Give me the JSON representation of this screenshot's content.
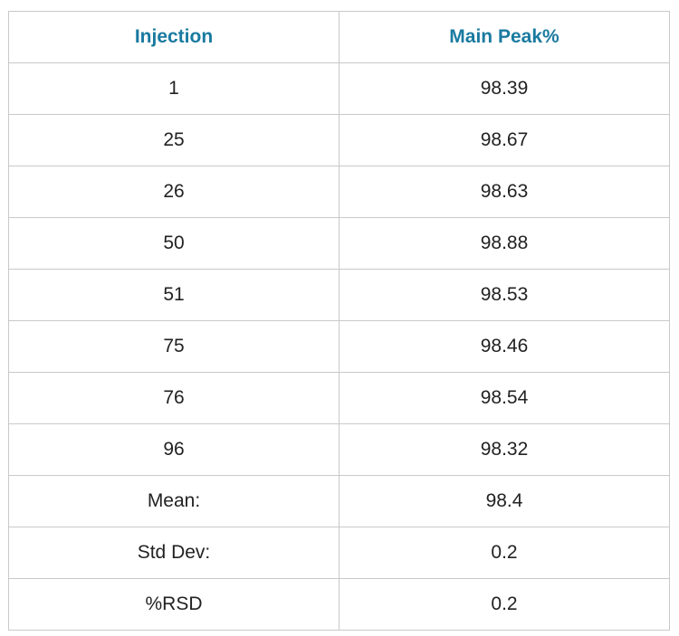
{
  "table": {
    "headers": [
      "Injection",
      "Main Peak%"
    ],
    "header_color": "#1a7aa0",
    "rows": [
      [
        "1",
        "98.39"
      ],
      [
        "25",
        "98.67"
      ],
      [
        "26",
        "98.63"
      ],
      [
        "50",
        "98.88"
      ],
      [
        "51",
        "98.53"
      ],
      [
        "75",
        "98.46"
      ],
      [
        "76",
        "98.54"
      ],
      [
        "96",
        "98.32"
      ],
      [
        "Mean:",
        "98.4"
      ],
      [
        "Std Dev:",
        "0.2"
      ],
      [
        "%RSD",
        "0.2"
      ]
    ]
  }
}
